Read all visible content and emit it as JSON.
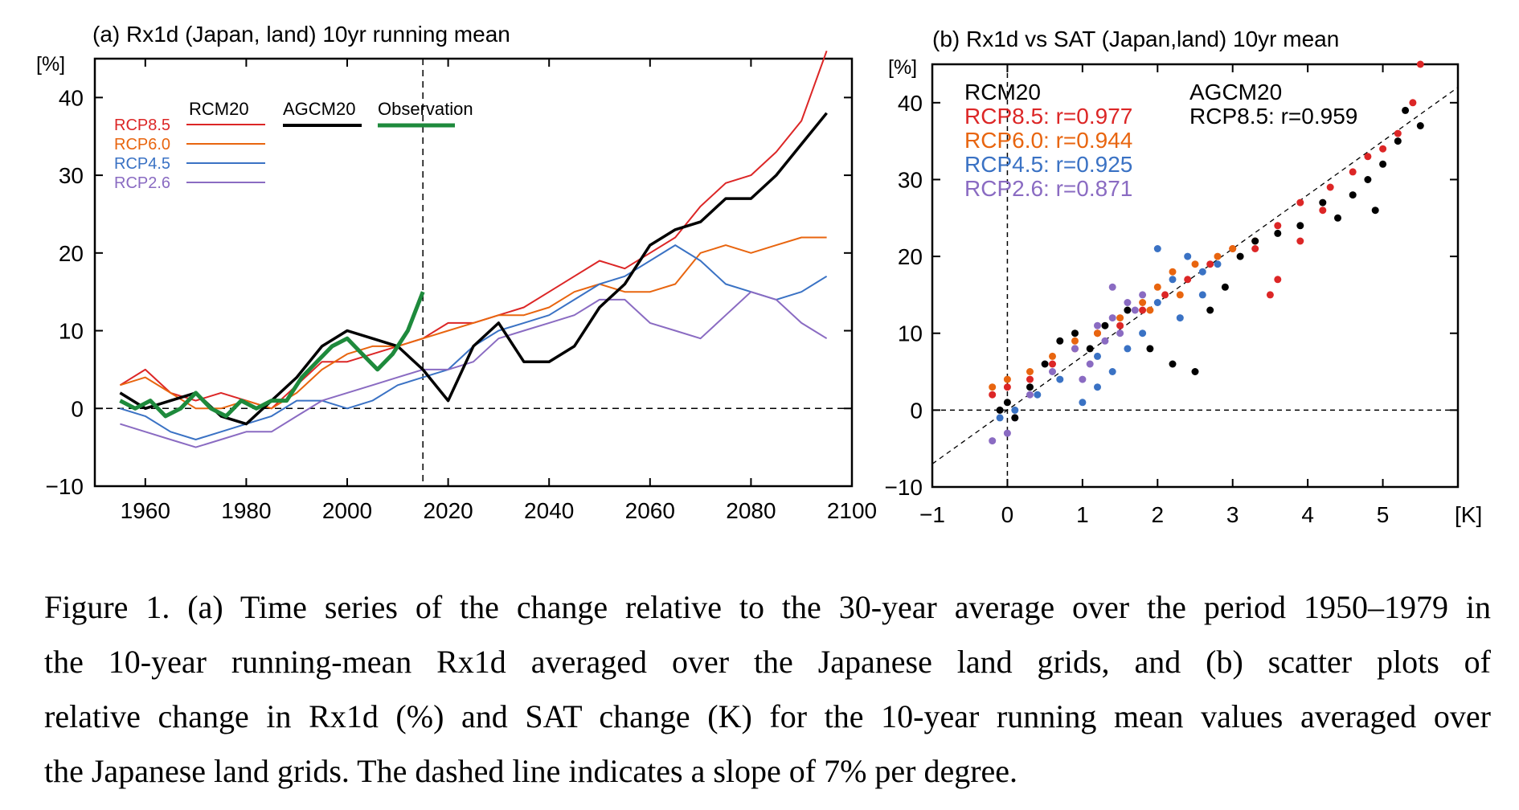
{
  "panel_a": {
    "title": "(a) Rx1d (Japan, land) 10yr running mean",
    "ylabel": "[%]",
    "legend": {
      "rcm_header": "RCM20",
      "agcm_header": "AGCM20",
      "obs_header": "Observation",
      "rcm_entries": [
        {
          "label": "RCP8.5",
          "color": "#dc2626"
        },
        {
          "label": "RCP6.0",
          "color": "#e8650f"
        },
        {
          "label": "RCP4.5",
          "color": "#3a72c4"
        },
        {
          "label": "RCP2.6",
          "color": "#8a6bc2"
        }
      ],
      "agcm_color": "#000000",
      "obs_color": "#1e8a3c"
    }
  },
  "panel_b": {
    "title": "(b) Rx1d vs SAT (Japan,land) 10yr mean",
    "ylabel": "[%]",
    "xunit": "[K]",
    "rcm_header": "RCM20",
    "agcm_header": "AGCM20",
    "rcm_corr": [
      {
        "label": "RCP8.5: r=0.977",
        "color": "#dc2626"
      },
      {
        "label": "RCP6.0: r=0.944",
        "color": "#e8650f"
      },
      {
        "label": "RCP4.5: r=0.925",
        "color": "#3a72c4"
      },
      {
        "label": "RCP2.6: r=0.871",
        "color": "#8a6bc2"
      }
    ],
    "agcm_corr": {
      "label": "RCP8.5: r=0.959",
      "color": "#000000"
    }
  },
  "caption": {
    "line1": "Figure 1. (a) Time series of the change relative to the 30-year average over the period 1950–1979 in",
    "line2": "the 10-year running-mean Rx1d averaged over the Japanese land grids, and (b) scatter plots of",
    "line3": "relative change in Rx1d (%) and SAT change (K) for the 10-year running mean values averaged over",
    "line4": "the Japanese land grids. The dashed line indicates a slope of 7% per degree."
  },
  "chart_data": [
    {
      "type": "line",
      "title": "(a) Rx1d (Japan, land) 10yr running mean",
      "ylabel": "[%]",
      "xlim": [
        1950,
        2100
      ],
      "ylim": [
        -10,
        45
      ],
      "xticks": [
        1960,
        1980,
        2000,
        2020,
        2040,
        2060,
        2080,
        2100
      ],
      "yticks": [
        -10,
        0,
        10,
        20,
        30,
        40
      ],
      "reference_lines": {
        "y": 0,
        "x": 2015
      },
      "series": [
        {
          "name": "RCP8.5",
          "group": "RCM20",
          "color": "#dc2626",
          "x": [
            1955,
            1960,
            1965,
            1970,
            1975,
            1980,
            1985,
            1990,
            1995,
            2000,
            2005,
            2010,
            2015,
            2020,
            2025,
            2030,
            2035,
            2040,
            2045,
            2050,
            2055,
            2060,
            2065,
            2070,
            2075,
            2080,
            2085,
            2090,
            2095
          ],
          "y": [
            3,
            5,
            2,
            1,
            2,
            1,
            0,
            3,
            6,
            6,
            7,
            8,
            9,
            11,
            11,
            12,
            13,
            15,
            17,
            19,
            18,
            20,
            22,
            26,
            29,
            30,
            33,
            37,
            46
          ]
        },
        {
          "name": "RCP6.0",
          "group": "RCM20",
          "color": "#e8650f",
          "x": [
            1955,
            1960,
            1965,
            1970,
            1975,
            1980,
            1985,
            1990,
            1995,
            2000,
            2005,
            2010,
            2015,
            2020,
            2025,
            2030,
            2035,
            2040,
            2045,
            2050,
            2055,
            2060,
            2065,
            2070,
            2075,
            2080,
            2085,
            2090,
            2095
          ],
          "y": [
            3,
            4,
            2,
            0,
            0,
            1,
            0,
            2,
            5,
            7,
            8,
            8,
            9,
            10,
            11,
            12,
            12,
            13,
            15,
            16,
            15,
            15,
            16,
            20,
            21,
            20,
            21,
            22,
            22
          ]
        },
        {
          "name": "RCP4.5",
          "group": "RCM20",
          "color": "#3a72c4",
          "x": [
            1955,
            1960,
            1965,
            1970,
            1975,
            1980,
            1985,
            1990,
            1995,
            2000,
            2005,
            2010,
            2015,
            2020,
            2025,
            2030,
            2035,
            2040,
            2045,
            2050,
            2055,
            2060,
            2065,
            2070,
            2075,
            2080,
            2085,
            2090,
            2095
          ],
          "y": [
            0,
            -1,
            -3,
            -4,
            -3,
            -2,
            -1,
            1,
            1,
            0,
            1,
            3,
            4,
            5,
            8,
            10,
            11,
            12,
            14,
            16,
            17,
            19,
            21,
            19,
            16,
            15,
            14,
            15,
            17
          ]
        },
        {
          "name": "RCP2.6",
          "group": "RCM20",
          "color": "#8a6bc2",
          "x": [
            1955,
            1960,
            1965,
            1970,
            1975,
            1980,
            1985,
            1990,
            1995,
            2000,
            2005,
            2010,
            2015,
            2020,
            2025,
            2030,
            2035,
            2040,
            2045,
            2050,
            2055,
            2060,
            2065,
            2070,
            2075,
            2080,
            2085,
            2090,
            2095
          ],
          "y": [
            -2,
            -3,
            -4,
            -5,
            -4,
            -3,
            -3,
            -1,
            1,
            2,
            3,
            4,
            5,
            5,
            6,
            9,
            10,
            11,
            12,
            14,
            14,
            11,
            10,
            9,
            12,
            15,
            14,
            11,
            9
          ]
        },
        {
          "name": "AGCM20 RCP8.5",
          "group": "AGCM20",
          "color": "#000000",
          "x": [
            1955,
            1960,
            1965,
            1970,
            1975,
            1980,
            1985,
            1990,
            1995,
            2000,
            2005,
            2010,
            2015,
            2020,
            2025,
            2030,
            2035,
            2040,
            2045,
            2050,
            2055,
            2060,
            2065,
            2070,
            2075,
            2080,
            2085,
            2090,
            2095
          ],
          "y": [
            2,
            0,
            1,
            2,
            -1,
            -2,
            1,
            4,
            8,
            10,
            9,
            8,
            5,
            1,
            8,
            11,
            6,
            6,
            8,
            13,
            16,
            21,
            23,
            24,
            27,
            27,
            30,
            34,
            38
          ]
        },
        {
          "name": "Observation",
          "group": "Observation",
          "color": "#1e8a3c",
          "x": [
            1955,
            1958,
            1961,
            1964,
            1967,
            1970,
            1973,
            1976,
            1979,
            1982,
            1985,
            1988,
            1991,
            1994,
            1997,
            2000,
            2003,
            2006,
            2009,
            2012,
            2015
          ],
          "y": [
            1,
            0,
            1,
            -1,
            0,
            2,
            0,
            -1,
            1,
            0,
            1,
            1,
            4,
            6,
            8,
            9,
            7,
            5,
            7,
            10,
            15
          ]
        }
      ]
    },
    {
      "type": "scatter",
      "title": "(b) Rx1d vs SAT (Japan,land) 10yr mean",
      "ylabel": "[%]",
      "xlabel": "[K]",
      "xlim": [
        -1,
        6
      ],
      "ylim": [
        -10,
        45
      ],
      "xticks": [
        -1,
        0,
        1,
        2,
        3,
        4,
        5
      ],
      "yticks": [
        -10,
        0,
        10,
        20,
        30,
        40
      ],
      "reference_lines": {
        "y": 0,
        "x": 0,
        "slope_line": {
          "slope": 7,
          "intercept": 0
        }
      },
      "series": [
        {
          "name": "RCP8.5: r=0.977",
          "group": "RCM20",
          "color": "#dc2626",
          "points": [
            [
              -0.2,
              2
            ],
            [
              0,
              3
            ],
            [
              0.3,
              4
            ],
            [
              0.6,
              6
            ],
            [
              0.9,
              8
            ],
            [
              1.2,
              10
            ],
            [
              1.5,
              11
            ],
            [
              1.8,
              13
            ],
            [
              2.1,
              15
            ],
            [
              2.4,
              17
            ],
            [
              2.7,
              19
            ],
            [
              3.0,
              21
            ],
            [
              3.3,
              21
            ],
            [
              3.5,
              15
            ],
            [
              3.6,
              24
            ],
            [
              3.9,
              27
            ],
            [
              4.2,
              26
            ],
            [
              4.3,
              29
            ],
            [
              4.6,
              31
            ],
            [
              4.8,
              33
            ],
            [
              5.0,
              34
            ],
            [
              5.2,
              36
            ],
            [
              5.4,
              40
            ],
            [
              5.5,
              45
            ],
            [
              3.6,
              17
            ],
            [
              3.9,
              22
            ]
          ]
        },
        {
          "name": "RCP6.0: r=0.944",
          "group": "RCM20",
          "color": "#e8650f",
          "points": [
            [
              -0.2,
              3
            ],
            [
              0,
              4
            ],
            [
              0.3,
              5
            ],
            [
              0.6,
              7
            ],
            [
              0.9,
              9
            ],
            [
              1.2,
              10
            ],
            [
              1.5,
              12
            ],
            [
              1.8,
              14
            ],
            [
              2.0,
              16
            ],
            [
              2.2,
              18
            ],
            [
              2.5,
              19
            ],
            [
              2.8,
              20
            ],
            [
              3.0,
              21
            ],
            [
              3.3,
              22
            ],
            [
              1.9,
              13
            ],
            [
              2.3,
              15
            ]
          ]
        },
        {
          "name": "RCP4.5: r=0.925",
          "group": "RCM20",
          "color": "#3a72c4",
          "points": [
            [
              -0.1,
              -1
            ],
            [
              0.1,
              0
            ],
            [
              0.4,
              2
            ],
            [
              0.7,
              4
            ],
            [
              1.0,
              1
            ],
            [
              1.2,
              3
            ],
            [
              1.4,
              5
            ],
            [
              1.6,
              8
            ],
            [
              1.8,
              10
            ],
            [
              2.0,
              14
            ],
            [
              2.2,
              17
            ],
            [
              2.4,
              20
            ],
            [
              2.6,
              18
            ],
            [
              2.8,
              19
            ],
            [
              2.0,
              21
            ],
            [
              2.3,
              12
            ],
            [
              2.6,
              15
            ],
            [
              1.2,
              7
            ]
          ]
        },
        {
          "name": "RCP2.6: r=0.871",
          "group": "RCM20",
          "color": "#8a6bc2",
          "points": [
            [
              -0.2,
              -4
            ],
            [
              0,
              -3
            ],
            [
              0.1,
              -1
            ],
            [
              0.3,
              2
            ],
            [
              0.6,
              5
            ],
            [
              0.9,
              8
            ],
            [
              1.1,
              6
            ],
            [
              1.2,
              11
            ],
            [
              1.4,
              12
            ],
            [
              1.5,
              10
            ],
            [
              1.6,
              14
            ],
            [
              1.7,
              13
            ],
            [
              1.8,
              15
            ],
            [
              1.4,
              16
            ],
            [
              1.3,
              9
            ],
            [
              1.0,
              4
            ]
          ]
        },
        {
          "name": "RCP8.5: r=0.959",
          "group": "AGCM20",
          "color": "#000000",
          "points": [
            [
              -0.1,
              0
            ],
            [
              0,
              1
            ],
            [
              0.1,
              -1
            ],
            [
              0.3,
              3
            ],
            [
              0.5,
              6
            ],
            [
              0.7,
              9
            ],
            [
              0.9,
              10
            ],
            [
              1.1,
              8
            ],
            [
              1.3,
              11
            ],
            [
              1.6,
              13
            ],
            [
              1.9,
              8
            ],
            [
              2.2,
              6
            ],
            [
              2.5,
              5
            ],
            [
              2.7,
              13
            ],
            [
              2.9,
              16
            ],
            [
              3.1,
              20
            ],
            [
              3.3,
              22
            ],
            [
              3.6,
              23
            ],
            [
              3.9,
              24
            ],
            [
              4.2,
              27
            ],
            [
              4.4,
              25
            ],
            [
              4.6,
              28
            ],
            [
              4.8,
              30
            ],
            [
              5.0,
              32
            ],
            [
              5.2,
              35
            ],
            [
              5.3,
              39
            ],
            [
              5.5,
              37
            ],
            [
              4.9,
              26
            ]
          ]
        }
      ]
    }
  ]
}
